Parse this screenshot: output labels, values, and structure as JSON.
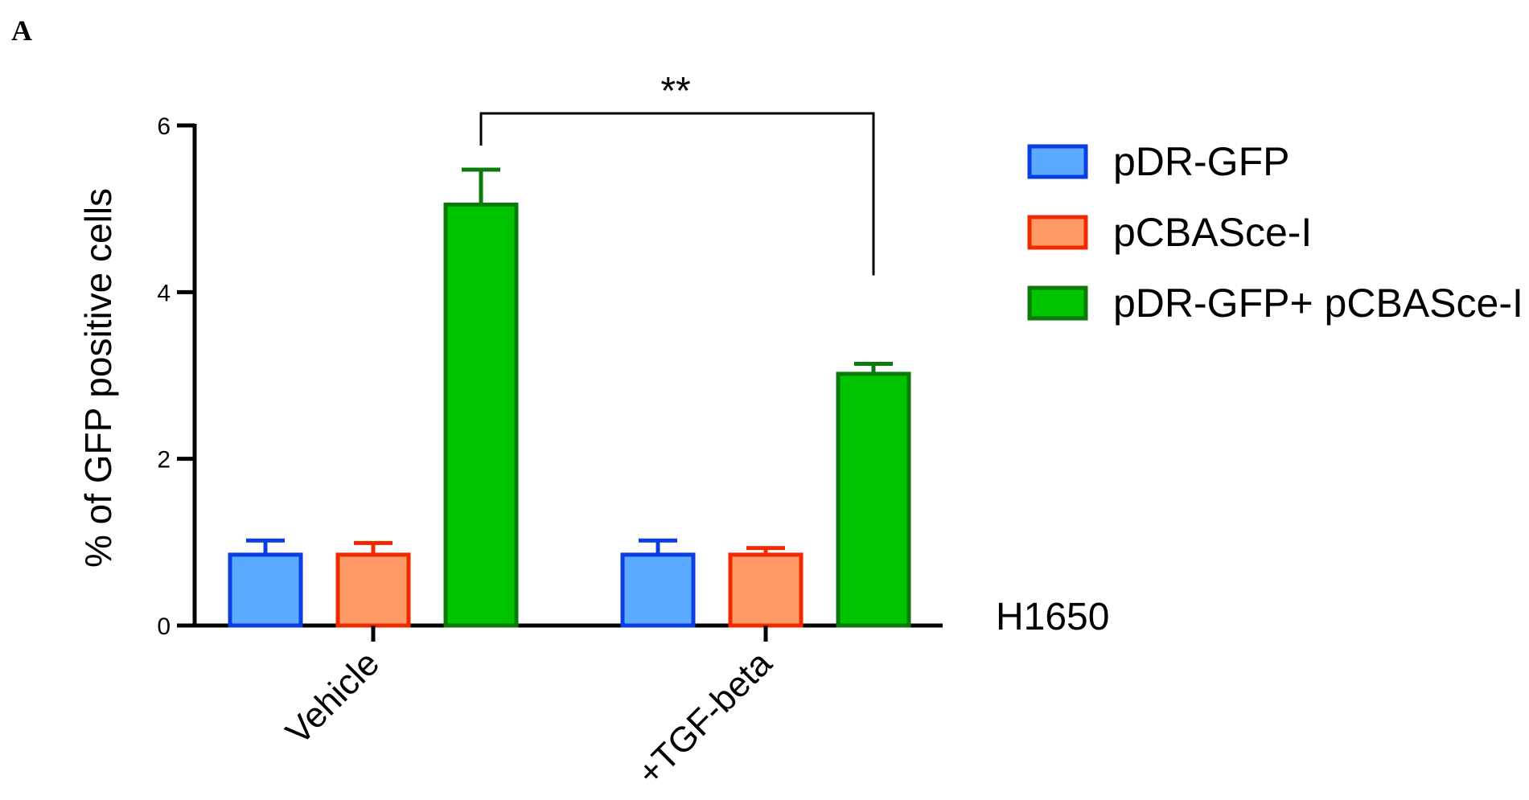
{
  "panel_label": "A",
  "chart_data": {
    "type": "bar",
    "title": "",
    "xlabel": "",
    "ylabel": "% of GFP positive cells",
    "ylim": [
      0,
      6
    ],
    "yticks": [
      0,
      2,
      4,
      6
    ],
    "categories": [
      "Vehicle",
      "+TGF-beta"
    ],
    "series": [
      {
        "name": "pDR-GFP",
        "values": [
          0.85,
          0.85
        ],
        "errors": [
          0.17,
          0.17
        ],
        "fill": "#5aabff",
        "stroke": "#0a3ee0"
      },
      {
        "name": "pCBASce-I",
        "values": [
          0.85,
          0.85
        ],
        "errors": [
          0.14,
          0.08
        ],
        "fill": "#ff9966",
        "stroke": "#f02a00"
      },
      {
        "name": "pDR-GFP+ pCBASce-I",
        "values": [
          5.05,
          3.02
        ],
        "errors": [
          0.42,
          0.12
        ],
        "fill": "#00c400",
        "stroke": "#0a7a0a"
      }
    ],
    "cell_line_label": "H1650",
    "annotation": "**",
    "legend_position": "right",
    "grid": false
  }
}
